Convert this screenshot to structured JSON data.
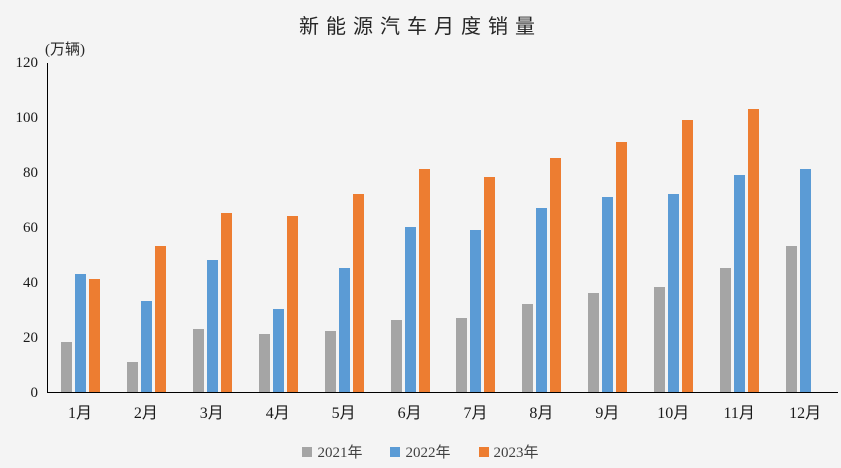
{
  "title": "新能源汽车月度销量",
  "unit_label": "(万辆)",
  "colors": {
    "series_2021": "#A5A5A5",
    "series_2022": "#5B9BD5",
    "series_2023": "#ED7D31",
    "axis": "#000000",
    "background": "#F4F4F4",
    "text": "#262626"
  },
  "chart_data": {
    "type": "bar",
    "title": "新能源汽车月度销量",
    "ylabel": "万辆",
    "xlabel": "",
    "categories": [
      "1月",
      "2月",
      "3月",
      "4月",
      "5月",
      "6月",
      "7月",
      "8月",
      "9月",
      "10月",
      "11月",
      "12月"
    ],
    "series": [
      {
        "name": "2021年",
        "color": "#A5A5A5",
        "values": [
          18,
          11,
          23,
          21,
          22,
          26,
          27,
          32,
          36,
          38,
          45,
          53
        ]
      },
      {
        "name": "2022年",
        "color": "#5B9BD5",
        "values": [
          43,
          33,
          48,
          30,
          45,
          60,
          59,
          67,
          71,
          72,
          79,
          81
        ]
      },
      {
        "name": "2023年",
        "color": "#ED7D31",
        "values": [
          41,
          53,
          65,
          64,
          72,
          81,
          78,
          85,
          91,
          99,
          103,
          null
        ]
      }
    ],
    "ylim": [
      0,
      120
    ],
    "yticks": [
      0,
      20,
      40,
      60,
      80,
      100,
      120
    ],
    "legend_position": "bottom",
    "grid": false
  }
}
